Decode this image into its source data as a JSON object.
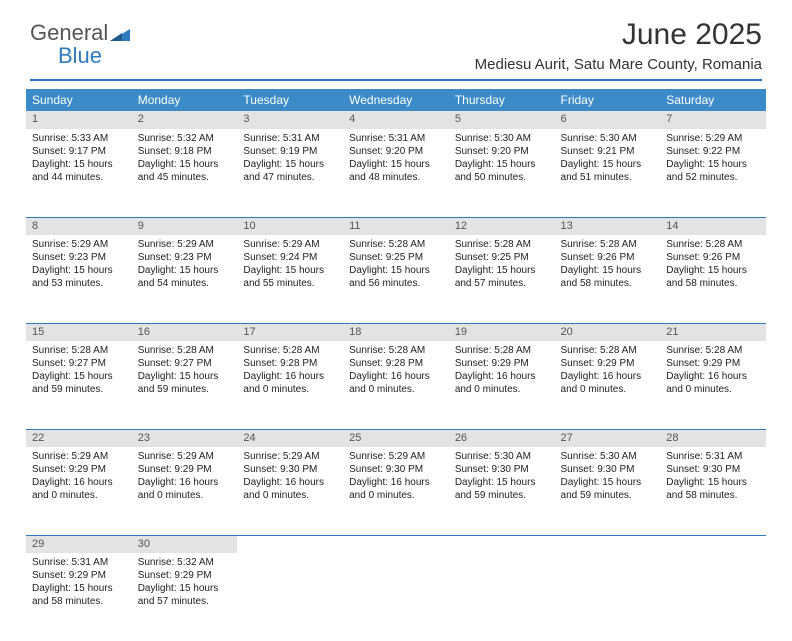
{
  "logo": {
    "text1": "General",
    "text2": "Blue",
    "color_general": "#555555",
    "color_blue": "#2f7bbf"
  },
  "title": "June 2025",
  "location": "Mediesu Aurit, Satu Mare County, Romania",
  "accent_color": "#3b8bc8",
  "border_color": "#2f7bbf",
  "daynum_bg": "#e3e3e3",
  "day_headers": [
    "Sunday",
    "Monday",
    "Tuesday",
    "Wednesday",
    "Thursday",
    "Friday",
    "Saturday"
  ],
  "weeks": [
    [
      {
        "n": "1",
        "sr": "Sunrise: 5:33 AM",
        "ss": "Sunset: 9:17 PM",
        "dl": "Daylight: 15 hours and 44 minutes."
      },
      {
        "n": "2",
        "sr": "Sunrise: 5:32 AM",
        "ss": "Sunset: 9:18 PM",
        "dl": "Daylight: 15 hours and 45 minutes."
      },
      {
        "n": "3",
        "sr": "Sunrise: 5:31 AM",
        "ss": "Sunset: 9:19 PM",
        "dl": "Daylight: 15 hours and 47 minutes."
      },
      {
        "n": "4",
        "sr": "Sunrise: 5:31 AM",
        "ss": "Sunset: 9:20 PM",
        "dl": "Daylight: 15 hours and 48 minutes."
      },
      {
        "n": "5",
        "sr": "Sunrise: 5:30 AM",
        "ss": "Sunset: 9:20 PM",
        "dl": "Daylight: 15 hours and 50 minutes."
      },
      {
        "n": "6",
        "sr": "Sunrise: 5:30 AM",
        "ss": "Sunset: 9:21 PM",
        "dl": "Daylight: 15 hours and 51 minutes."
      },
      {
        "n": "7",
        "sr": "Sunrise: 5:29 AM",
        "ss": "Sunset: 9:22 PM",
        "dl": "Daylight: 15 hours and 52 minutes."
      }
    ],
    [
      {
        "n": "8",
        "sr": "Sunrise: 5:29 AM",
        "ss": "Sunset: 9:23 PM",
        "dl": "Daylight: 15 hours and 53 minutes."
      },
      {
        "n": "9",
        "sr": "Sunrise: 5:29 AM",
        "ss": "Sunset: 9:23 PM",
        "dl": "Daylight: 15 hours and 54 minutes."
      },
      {
        "n": "10",
        "sr": "Sunrise: 5:29 AM",
        "ss": "Sunset: 9:24 PM",
        "dl": "Daylight: 15 hours and 55 minutes."
      },
      {
        "n": "11",
        "sr": "Sunrise: 5:28 AM",
        "ss": "Sunset: 9:25 PM",
        "dl": "Daylight: 15 hours and 56 minutes."
      },
      {
        "n": "12",
        "sr": "Sunrise: 5:28 AM",
        "ss": "Sunset: 9:25 PM",
        "dl": "Daylight: 15 hours and 57 minutes."
      },
      {
        "n": "13",
        "sr": "Sunrise: 5:28 AM",
        "ss": "Sunset: 9:26 PM",
        "dl": "Daylight: 15 hours and 58 minutes."
      },
      {
        "n": "14",
        "sr": "Sunrise: 5:28 AM",
        "ss": "Sunset: 9:26 PM",
        "dl": "Daylight: 15 hours and 58 minutes."
      }
    ],
    [
      {
        "n": "15",
        "sr": "Sunrise: 5:28 AM",
        "ss": "Sunset: 9:27 PM",
        "dl": "Daylight: 15 hours and 59 minutes."
      },
      {
        "n": "16",
        "sr": "Sunrise: 5:28 AM",
        "ss": "Sunset: 9:27 PM",
        "dl": "Daylight: 15 hours and 59 minutes."
      },
      {
        "n": "17",
        "sr": "Sunrise: 5:28 AM",
        "ss": "Sunset: 9:28 PM",
        "dl": "Daylight: 16 hours and 0 minutes."
      },
      {
        "n": "18",
        "sr": "Sunrise: 5:28 AM",
        "ss": "Sunset: 9:28 PM",
        "dl": "Daylight: 16 hours and 0 minutes."
      },
      {
        "n": "19",
        "sr": "Sunrise: 5:28 AM",
        "ss": "Sunset: 9:29 PM",
        "dl": "Daylight: 16 hours and 0 minutes."
      },
      {
        "n": "20",
        "sr": "Sunrise: 5:28 AM",
        "ss": "Sunset: 9:29 PM",
        "dl": "Daylight: 16 hours and 0 minutes."
      },
      {
        "n": "21",
        "sr": "Sunrise: 5:28 AM",
        "ss": "Sunset: 9:29 PM",
        "dl": "Daylight: 16 hours and 0 minutes."
      }
    ],
    [
      {
        "n": "22",
        "sr": "Sunrise: 5:29 AM",
        "ss": "Sunset: 9:29 PM",
        "dl": "Daylight: 16 hours and 0 minutes."
      },
      {
        "n": "23",
        "sr": "Sunrise: 5:29 AM",
        "ss": "Sunset: 9:29 PM",
        "dl": "Daylight: 16 hours and 0 minutes."
      },
      {
        "n": "24",
        "sr": "Sunrise: 5:29 AM",
        "ss": "Sunset: 9:30 PM",
        "dl": "Daylight: 16 hours and 0 minutes."
      },
      {
        "n": "25",
        "sr": "Sunrise: 5:29 AM",
        "ss": "Sunset: 9:30 PM",
        "dl": "Daylight: 16 hours and 0 minutes."
      },
      {
        "n": "26",
        "sr": "Sunrise: 5:30 AM",
        "ss": "Sunset: 9:30 PM",
        "dl": "Daylight: 15 hours and 59 minutes."
      },
      {
        "n": "27",
        "sr": "Sunrise: 5:30 AM",
        "ss": "Sunset: 9:30 PM",
        "dl": "Daylight: 15 hours and 59 minutes."
      },
      {
        "n": "28",
        "sr": "Sunrise: 5:31 AM",
        "ss": "Sunset: 9:30 PM",
        "dl": "Daylight: 15 hours and 58 minutes."
      }
    ],
    [
      {
        "n": "29",
        "sr": "Sunrise: 5:31 AM",
        "ss": "Sunset: 9:29 PM",
        "dl": "Daylight: 15 hours and 58 minutes."
      },
      {
        "n": "30",
        "sr": "Sunrise: 5:32 AM",
        "ss": "Sunset: 9:29 PM",
        "dl": "Daylight: 15 hours and 57 minutes."
      },
      null,
      null,
      null,
      null,
      null
    ]
  ]
}
